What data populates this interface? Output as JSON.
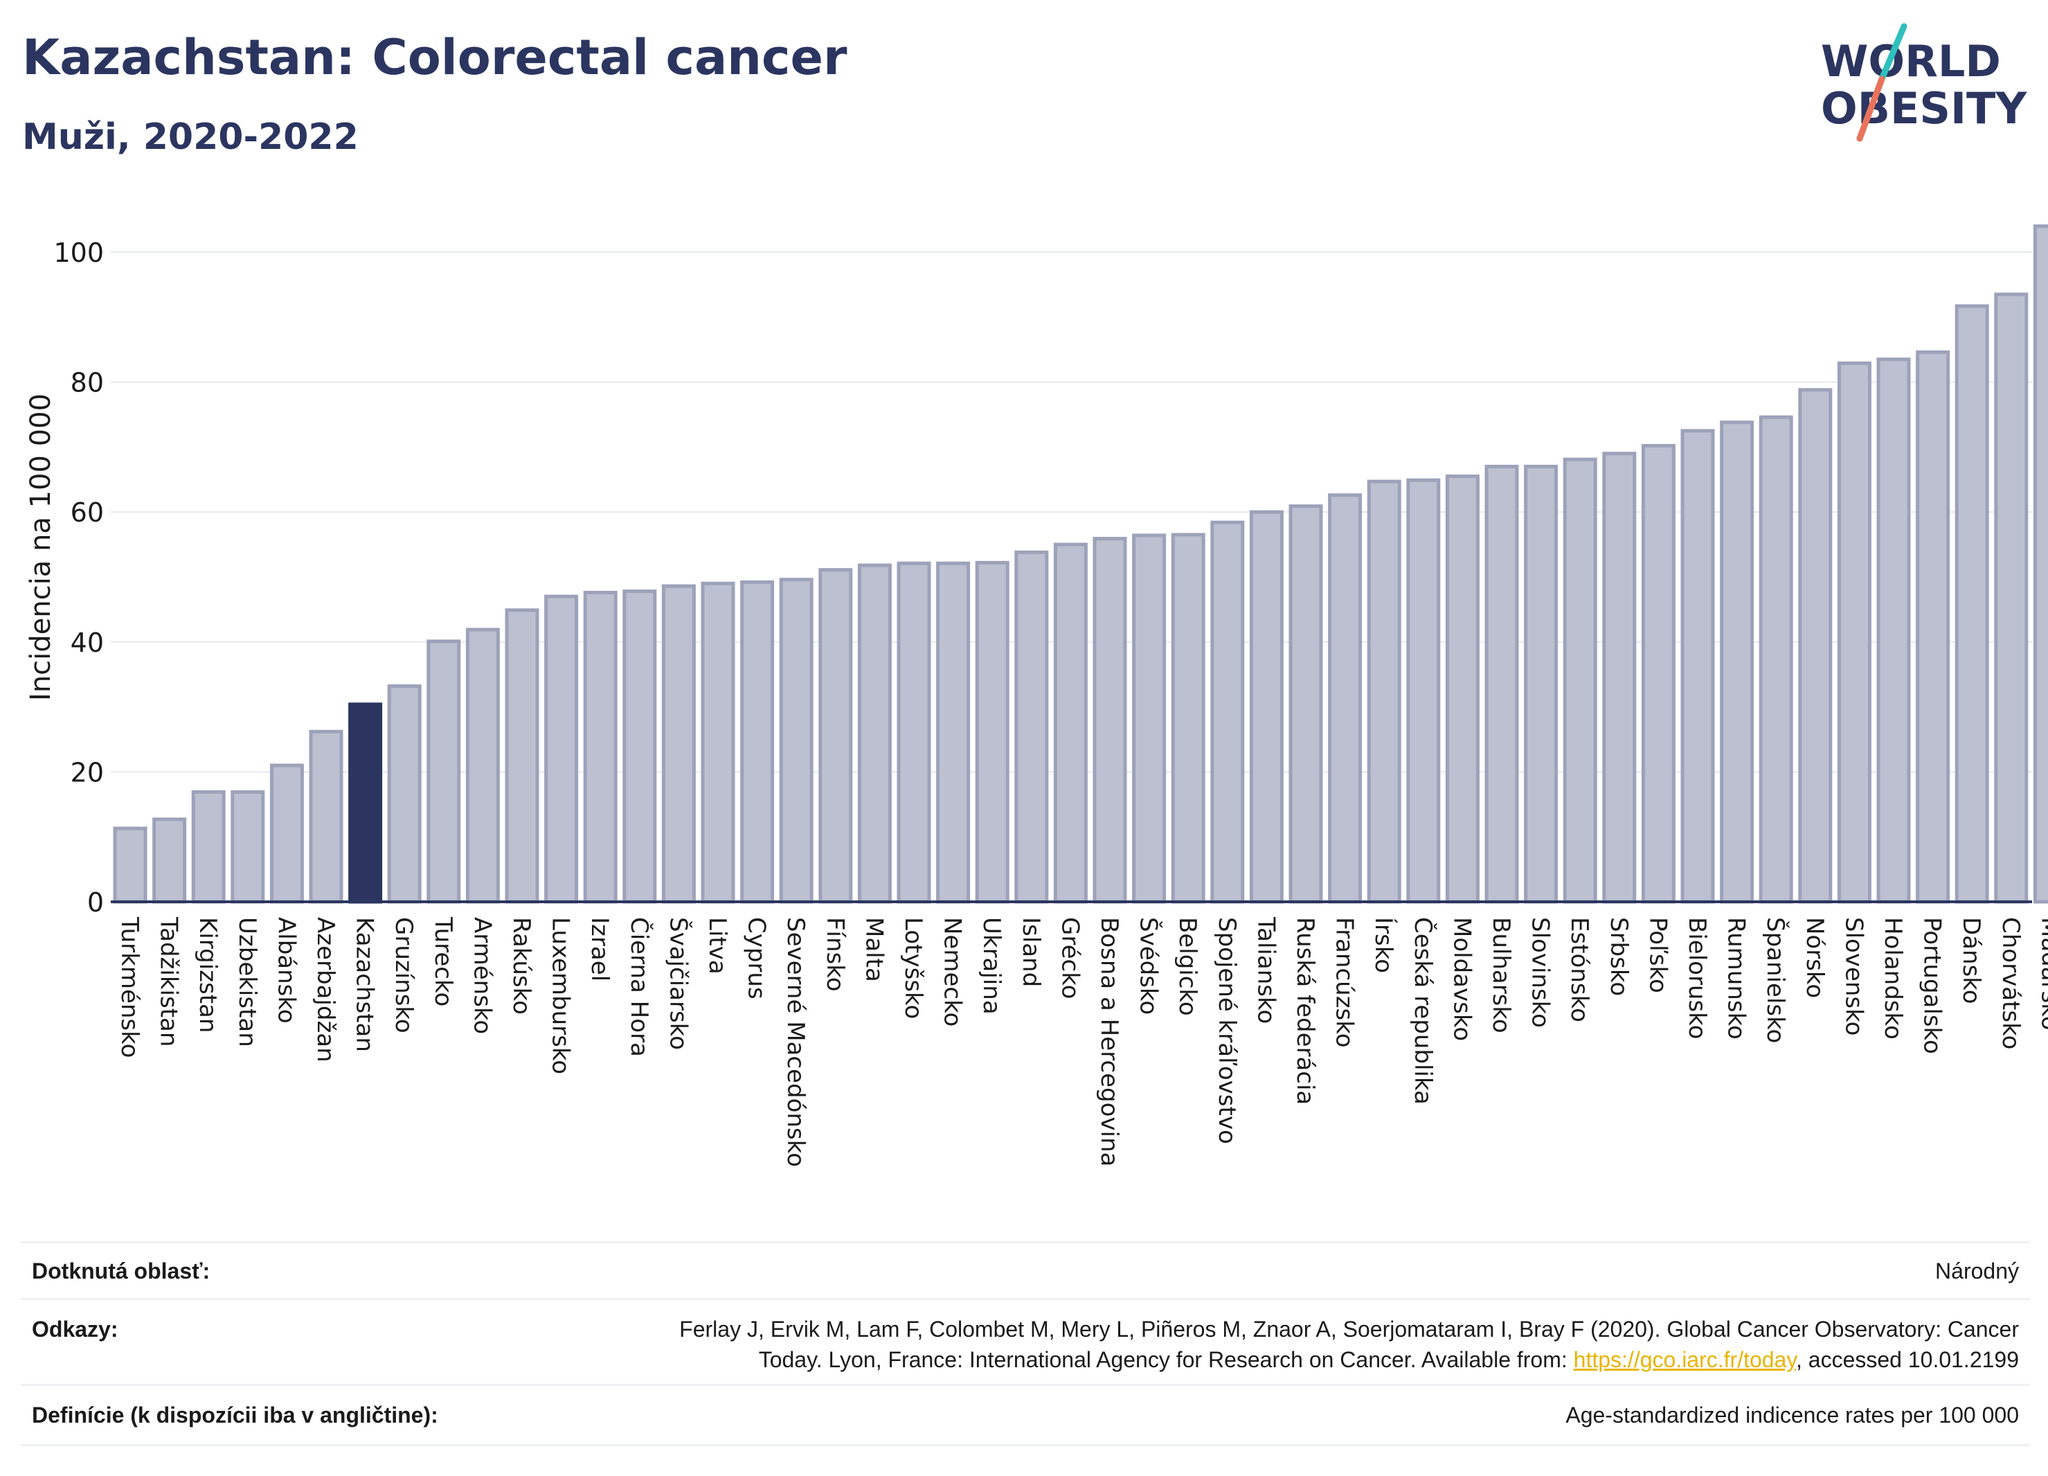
{
  "title": "Kazachstan: Colorectal cancer",
  "subtitle": "Muži, 2020-2022",
  "logo": {
    "line1": "WORLD",
    "line2": "OBESITY"
  },
  "colors": {
    "bar": "#bcc0d0",
    "bar_edge": "#9da2ba",
    "highlight": "#2b3560",
    "text": "#2b3560",
    "slash_top": "#2fbfbf",
    "slash_bottom": "#e8735a"
  },
  "chart_data": {
    "type": "bar",
    "ylabel": "Incidencia na 100 000",
    "ylim": [
      0,
      104
    ],
    "yticks": [
      0,
      20,
      40,
      60,
      80,
      100
    ],
    "grid": true,
    "highlight": "Kazachstan",
    "categories": [
      "Turkménsko",
      "Tadžikistan",
      "Kirgizstan",
      "Uzbekistan",
      "Albánsko",
      "Azerbajdžan",
      "Kazachstan",
      "Gruzínsko",
      "Turecko",
      "Arménsko",
      "Rakúsko",
      "Luxembursko",
      "Izrael",
      "Čierna Hora",
      "Švajčiarsko",
      "Litva",
      "Cyprus",
      "Severné Macedónsko",
      "Fínsko",
      "Malta",
      "Lotyšsko",
      "Nemecko",
      "Ukrajina",
      "Island",
      "Grécko",
      "Bosna a Hercegovina",
      "Švédsko",
      "Belgicko",
      "Spojené kráľovstvo",
      "Taliansko",
      "Ruská federácia",
      "Francúzsko",
      "Írsko",
      "Česká republika",
      "Moldavsko",
      "Bulharsko",
      "Slovinsko",
      "Estónsko",
      "Srbsko",
      "Poľsko",
      "Bielorusko",
      "Rumunsko",
      "Španielsko",
      "Nórsko",
      "Slovensko",
      "Holandsko",
      "Portugalsko",
      "Dánsko",
      "Chorvátsko",
      "Maďarsko"
    ],
    "values": [
      11.3,
      12.7,
      16.9,
      16.9,
      21.0,
      26.2,
      30.4,
      33.2,
      40.1,
      41.9,
      44.9,
      47.0,
      47.6,
      47.8,
      48.6,
      49.0,
      49.2,
      49.6,
      51.1,
      51.8,
      52.1,
      52.1,
      52.2,
      53.8,
      55.0,
      55.9,
      56.4,
      56.5,
      58.4,
      60.0,
      60.9,
      62.6,
      64.7,
      64.9,
      65.5,
      67.0,
      67.0,
      68.1,
      69.0,
      70.2,
      72.5,
      73.8,
      74.6,
      78.8,
      82.9,
      83.5,
      84.6,
      91.7,
      93.5,
      104.0
    ]
  },
  "info": {
    "area_label": "Dotknutá oblasť:",
    "area_value": "Národný",
    "refs_label": "Odkazy:",
    "refs_line1": "Ferlay J, Ervik M, Lam F, Colombet M, Mery L, Piñeros M, Znaor A, Soerjomataram I, Bray F (2020). Global Cancer Observatory: Cancer",
    "refs_line2_pre": "Today. Lyon, France: International Agency for Research on Cancer. Available from: ",
    "refs_link": "https://gco.iarc.fr/today",
    "refs_line2_post": ", accessed 10.01.2199",
    "def_label": "Definície (k dispozícii iba v angličtine):",
    "def_value": "Age-standardized indicence rates per 100 000"
  }
}
